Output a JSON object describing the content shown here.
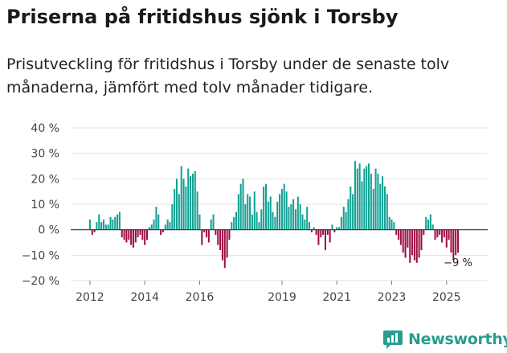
{
  "colors": {
    "positive": "#13a195",
    "negative": "#9e0f46",
    "grid": "#e3e3e3",
    "zero": "#333333",
    "axis_text": "#444444",
    "brand": "#2a9d8f"
  },
  "chart_data": {
    "type": "bar",
    "title": "Priserna på fritidshus sjönk i Torsby",
    "subtitle": "Prisutveckling för fritidshus i Torsby under de senaste tolv månaderna, jämfört med tolv månader tidigare.",
    "ylabel": "",
    "xlabel": "",
    "ylim": [
      -20,
      40
    ],
    "yticks": [
      -20,
      -10,
      0,
      10,
      20,
      30,
      40
    ],
    "ytick_labels": [
      "−20 %",
      "−10 %",
      "0 %",
      "10 %",
      "20 %",
      "30 %",
      "40 %"
    ],
    "xlim": [
      2011.3,
      2026.5
    ],
    "xticks": [
      2012,
      2014,
      2016,
      2019,
      2021,
      2023,
      2025
    ],
    "xtick_labels": [
      "2012",
      "2014",
      "2016",
      "2019",
      "2021",
      "2023",
      "2025"
    ],
    "x_start": 2012.0,
    "x_step": 0.08333,
    "values": [
      4,
      -2,
      -1,
      3,
      6,
      3,
      4,
      2,
      2,
      5,
      4,
      5,
      6,
      7,
      -3,
      -4,
      -5,
      -4,
      -6,
      -7,
      -5,
      -3,
      -2,
      -4,
      -6,
      -4,
      1,
      2,
      4,
      9,
      6,
      -2,
      -1,
      2,
      4,
      3,
      10,
      16,
      20,
      14,
      25,
      20,
      17,
      24,
      21,
      22,
      23,
      15,
      6,
      -6,
      -1,
      -3,
      -5,
      4,
      6,
      -2,
      -6,
      -8,
      -12,
      -15,
      -11,
      -4,
      3,
      5,
      7,
      14,
      18,
      20,
      10,
      14,
      13,
      6,
      15,
      7,
      3,
      8,
      17,
      18,
      11,
      13,
      7,
      5,
      11,
      14,
      16,
      18,
      15,
      9,
      10,
      12,
      8,
      13,
      10,
      6,
      4,
      9,
      3,
      -1,
      1,
      -2,
      -6,
      -3,
      -2,
      -8,
      -2,
      -5,
      2,
      -1,
      1,
      1,
      5,
      9,
      7,
      12,
      17,
      14,
      27,
      24,
      26,
      19,
      24,
      25,
      26,
      22,
      16,
      24,
      22,
      18,
      21,
      17,
      14,
      5,
      4,
      3,
      -2,
      -4,
      -6,
      -9,
      -11,
      -7,
      -13,
      -10,
      -12,
      -13,
      -11,
      -8,
      -2,
      5,
      4,
      6,
      2,
      -4,
      -3,
      -2,
      -5,
      -3,
      -7,
      -4,
      -9,
      -12,
      -10,
      -9
    ],
    "last_value_label": "−9 %"
  },
  "brand": {
    "name": "Newsworthy"
  }
}
